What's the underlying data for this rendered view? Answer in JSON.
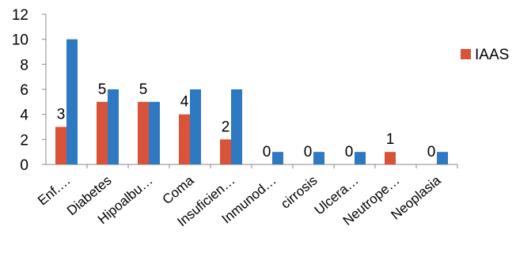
{
  "chart_data": {
    "type": "bar",
    "categories": [
      "Enf.…",
      "Diabetes",
      "Hipoalbu…",
      "Coma",
      "Insuficien…",
      "Inmunod…",
      "cirrosis",
      "Ulcera…",
      "Neutrope…",
      "Neoplasia"
    ],
    "series": [
      {
        "name": "IAAS",
        "values": [
          3,
          5,
          5,
          4,
          2,
          0,
          0,
          0,
          1,
          0
        ],
        "color": "#d9533b",
        "data_labels": [
          "3",
          "5",
          "5",
          "4",
          "2",
          "0",
          "0",
          "0",
          "1",
          "0"
        ]
      },
      {
        "values": [
          10,
          6,
          5,
          6,
          6,
          1,
          1,
          1,
          0,
          1
        ],
        "color": "#2f78c2"
      }
    ],
    "y_ticks": [
      "0",
      "2",
      "4",
      "6",
      "8",
      "10",
      "12"
    ],
    "ylim": [
      0,
      12
    ],
    "grid": false,
    "legend": {
      "position": "right",
      "entries": [
        "IAAS"
      ]
    }
  }
}
